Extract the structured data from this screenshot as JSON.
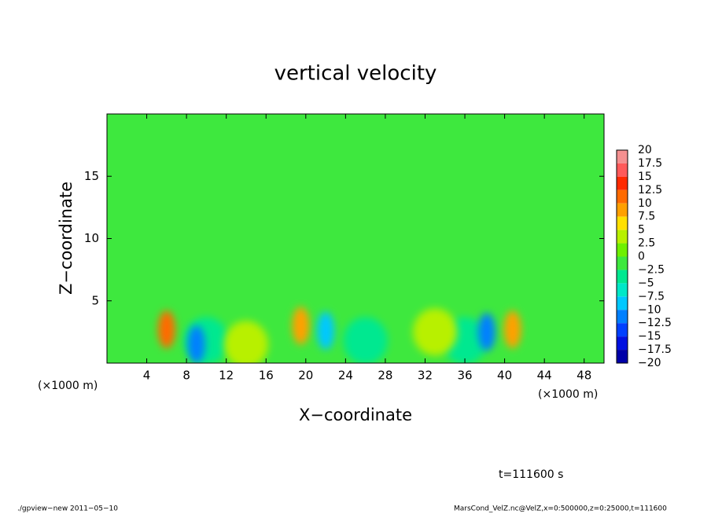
{
  "chart_data": {
    "type": "contour",
    "title": "vertical velocity",
    "x_label": "X−coordinate",
    "y_label": "Z−coordinate",
    "x_unit": "(×1000 m)",
    "y_unit": "(×1000 m)",
    "xlim": [
      0,
      50
    ],
    "xticks": [
      4,
      8,
      12,
      16,
      20,
      24,
      28,
      32,
      36,
      40,
      44,
      48
    ],
    "ylim": [
      0,
      20
    ],
    "yticks": [
      5,
      10,
      15
    ],
    "background_color": "#3ee83e",
    "x": [
      10,
      26,
      36,
      14,
      33,
      6,
      9,
      19.5,
      22,
      38.2,
      40.8
    ],
    "y": [
      1.8,
      1.8,
      1.8,
      1.5,
      2.5,
      2.7,
      1.5,
      3,
      2.6,
      2.5,
      2.7
    ],
    "values": [
      -3,
      -3,
      -3,
      3,
      4,
      12,
      -12,
      8,
      -8,
      -11,
      8
    ],
    "levels": [
      20,
      17.5,
      15,
      12.5,
      10,
      7.5,
      5,
      2.5,
      0,
      {
        "value": -2.5,
        "label": "−2.5"
      },
      {
        "value": -5,
        "label": "−5"
      },
      {
        "value": -7.5,
        "label": "−7.5"
      },
      {
        "value": -10,
        "label": "−10"
      },
      {
        "value": -12.5,
        "label": "−12.5"
      },
      {
        "value": -15,
        "label": "−15"
      },
      {
        "value": -17.5,
        "label": "−17.5"
      },
      {
        "value": -20,
        "label": "−20"
      }
    ],
    "colors": [
      "#f49090",
      "#ff5a5a",
      "#ff2a00",
      "#ff6a00",
      "#ffa000",
      "#ffe000",
      "#b8f000",
      "#6ef000",
      "#3ee83e",
      "#00e890",
      "#00e8c8",
      "#00c8ff",
      "#0080ff",
      "#0040ff",
      "#0010e0",
      "#0000a8",
      "#6a10b0"
    ],
    "time_label": "t=111600 s",
    "footer_left": "./gpview−new   2011−05−10",
    "footer_right": "MarsCond_VelZ.nc@VelZ,x=0:500000,z=0:25000,t=111600"
  }
}
